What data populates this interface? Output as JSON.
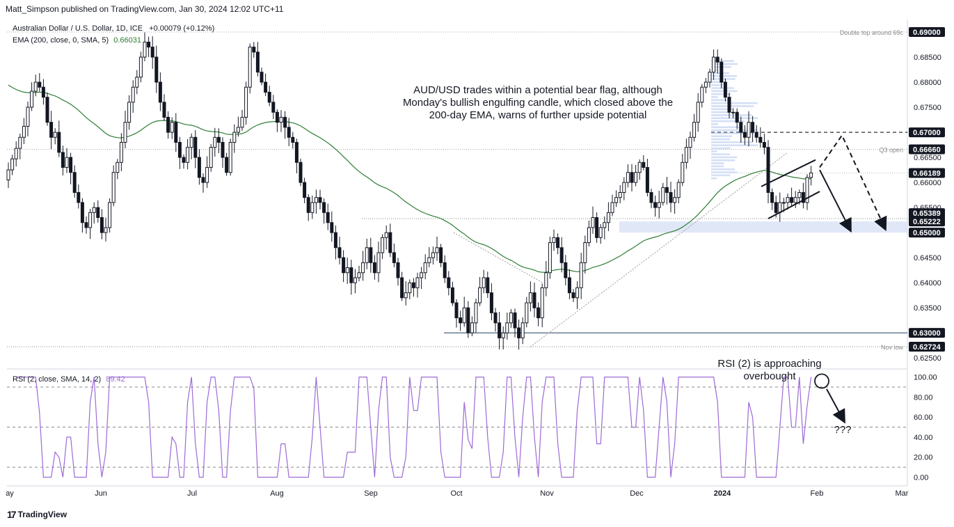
{
  "header": {
    "publisher": "Matt_Simpson published on TradingView.com, Jan 30, 2024 12:02 UTC+11"
  },
  "legend": {
    "symbol": "Australian Dollar / U.S. Dollar, 1D, ICE",
    "change": "+0.00079 (+0.12%)",
    "ema_label": "EMA (200, close, 0, SMA, 5)",
    "ema_value": "0.66031",
    "rsi_label": "RSI (2, close, SMA, 14, 2)",
    "rsi_value": "89.42"
  },
  "footer": {
    "brand": "TradingView"
  },
  "colors": {
    "up": "#ffffff",
    "down": "#131722",
    "ema": "#2e7d32",
    "rsi": "#9c6ad6",
    "zone": "#c7d3f0",
    "price_badge": "#131722"
  },
  "chart_data": [
    {
      "type": "candlestick",
      "title": "",
      "symbol": "Australian Dollar / U.S. Dollar, 1D, ICE",
      "x_labels": [
        "ay",
        "Jun",
        "Jul",
        "Aug",
        "Sep",
        "Oct",
        "Nov",
        "Dec",
        "2024",
        "Feb",
        "Mar"
      ],
      "y_ticks": [
        "0.69000",
        "0.68500",
        "0.68000",
        "0.67500",
        "0.67000",
        "0.66500",
        "0.66000",
        "0.65500",
        "0.65000",
        "0.64500",
        "0.64000",
        "0.63500",
        "0.63000",
        "0.62500"
      ],
      "ylim": [
        0.6235,
        0.6925
      ],
      "price_badges": [
        {
          "value": 0.69,
          "label": "0.69000",
          "note": "Double top around 69c"
        },
        {
          "value": 0.67,
          "label": "0.67000",
          "note": ""
        },
        {
          "value": 0.6666,
          "label": "0.66660",
          "note": "Q3 open"
        },
        {
          "value": 0.66189,
          "label": "0.66189",
          "note": ""
        },
        {
          "value": 0.65389,
          "label": "0.65389",
          "note": ""
        },
        {
          "value": 0.65222,
          "label": "0.65222",
          "note": ""
        },
        {
          "value": 0.65,
          "label": "0.65000",
          "note": ""
        },
        {
          "value": 0.63,
          "label": "0.63000",
          "note": ""
        },
        {
          "value": 0.62724,
          "label": "0.62724",
          "note": "Nov low"
        }
      ],
      "ema200": {
        "label": "EMA (200, close, 0, SMA, 5)",
        "last": 0.66031
      },
      "annotations": [
        "AUD/USD trades within a potential bear flag, although",
        "Monday's bullish engulfing candle, which closed above the",
        "200-day EMA, warns of further upside potential"
      ],
      "closes": [
        0.6625,
        0.6647,
        0.6668,
        0.669,
        0.6712,
        0.675,
        0.6782,
        0.68,
        0.679,
        0.677,
        0.672,
        0.669,
        0.67,
        0.666,
        0.663,
        0.665,
        0.662,
        0.658,
        0.656,
        0.652,
        0.651,
        0.654,
        0.655,
        0.653,
        0.65,
        0.651,
        0.656,
        0.662,
        0.664,
        0.668,
        0.672,
        0.676,
        0.679,
        0.681,
        0.685,
        0.688,
        0.687,
        0.685,
        0.68,
        0.676,
        0.673,
        0.67,
        0.672,
        0.668,
        0.665,
        0.664,
        0.667,
        0.669,
        0.665,
        0.661,
        0.66,
        0.663,
        0.667,
        0.669,
        0.668,
        0.665,
        0.662,
        0.668,
        0.67,
        0.671,
        0.673,
        0.679,
        0.687,
        0.686,
        0.682,
        0.68,
        0.678,
        0.676,
        0.674,
        0.672,
        0.673,
        0.671,
        0.669,
        0.668,
        0.664,
        0.66,
        0.657,
        0.654,
        0.656,
        0.657,
        0.656,
        0.654,
        0.652,
        0.65,
        0.647,
        0.645,
        0.642,
        0.643,
        0.64,
        0.641,
        0.642,
        0.644,
        0.647,
        0.644,
        0.642,
        0.646,
        0.649,
        0.65,
        0.646,
        0.644,
        0.641,
        0.637,
        0.638,
        0.64,
        0.639,
        0.641,
        0.642,
        0.644,
        0.645,
        0.646,
        0.647,
        0.644,
        0.641,
        0.639,
        0.636,
        0.633,
        0.632,
        0.635,
        0.63,
        0.632,
        0.636,
        0.639,
        0.641,
        0.638,
        0.634,
        0.632,
        0.629,
        0.63,
        0.632,
        0.634,
        0.631,
        0.629,
        0.632,
        0.636,
        0.638,
        0.635,
        0.633,
        0.639,
        0.642,
        0.648,
        0.649,
        0.647,
        0.644,
        0.641,
        0.638,
        0.637,
        0.639,
        0.644,
        0.648,
        0.651,
        0.653,
        0.649,
        0.651,
        0.652,
        0.654,
        0.656,
        0.657,
        0.658,
        0.66,
        0.662,
        0.66,
        0.662,
        0.664,
        0.663,
        0.658,
        0.656,
        0.655,
        0.656,
        0.659,
        0.658,
        0.656,
        0.657,
        0.66,
        0.664,
        0.667,
        0.669,
        0.672,
        0.676,
        0.679,
        0.68,
        0.682,
        0.685,
        0.684,
        0.68,
        0.677,
        0.674,
        0.674,
        0.672,
        0.67,
        0.669,
        0.672,
        0.67,
        0.669,
        0.668,
        0.667,
        0.658,
        0.656,
        0.654,
        0.656,
        0.656,
        0.657,
        0.656,
        0.657,
        0.658,
        0.656,
        0.661,
        0.6619
      ],
      "rsi_data": {
        "label": "RSI (2, close, SMA, 14, 2)",
        "last": 89.42,
        "levels": [
          90,
          50,
          10
        ],
        "y_ticks": [
          "100.00",
          "80.00",
          "60.00",
          "40.00",
          "20.00",
          "0.00"
        ],
        "ylim": [
          -8,
          106
        ],
        "annotations": [
          "RSI (2) is approaching",
          "overbought",
          "???"
        ]
      }
    }
  ]
}
